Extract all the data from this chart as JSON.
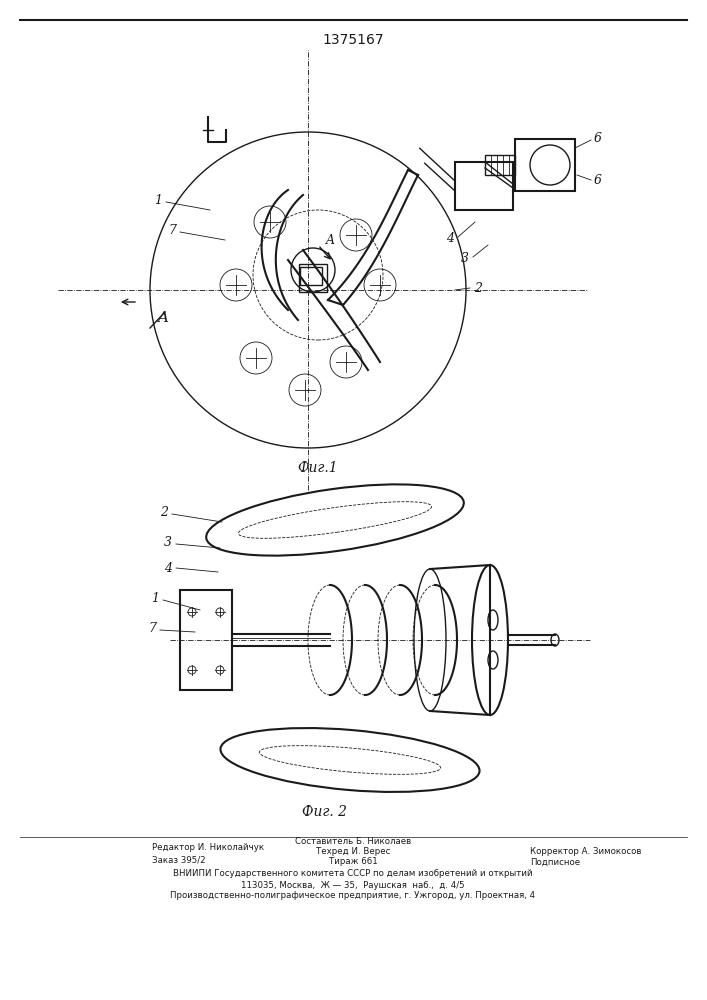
{
  "patent_number": "1375167",
  "fig1_caption": "Фиг.1",
  "fig2_caption": "Фиг. 2",
  "footer_line1_left": "Редактор И. Николайчук",
  "footer_line2_left": "Заказ 395/2",
  "footer_line1_center": "Составитель Б. Николаев",
  "footer_line2_center": "Техред И. Верес",
  "footer_line3_center": "Тираж 661",
  "footer_line2_right": "Корректор А. Зимокосов",
  "footer_line3_right": "Подписное",
  "footer_vniip": "ВНИИПИ Государственного комитета СССР по делам изобретений и открытий",
  "footer_address": "113035, Москва,  Ж — 35,  Раушская  наб.,  д. 4/5",
  "footer_company": "Производственно-полиграфическое предприятие, г. Ужгород, ул. Проектная, 4",
  "bg_color": "#ffffff",
  "line_color": "#1a1a1a"
}
